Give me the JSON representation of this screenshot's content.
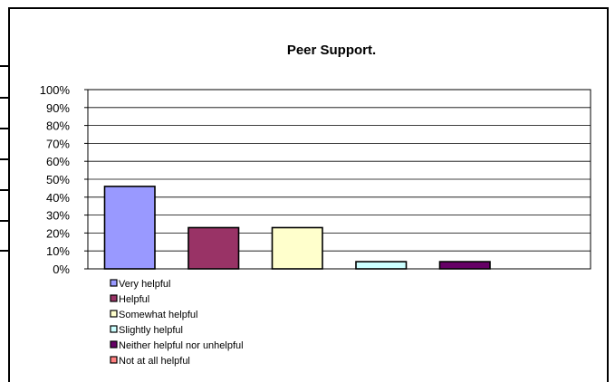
{
  "chart_data": {
    "type": "bar",
    "title": "Peer Support.",
    "categories": [
      "Very helpful",
      "Helpful",
      "Somewhat helpful",
      "Slightly helpful",
      "Neither helpful nor unhelpful",
      "Not at all helpful"
    ],
    "values": [
      46,
      23,
      23,
      4,
      4,
      0
    ],
    "colors": [
      "#9999FF",
      "#993366",
      "#FFFFCC",
      "#CCFFFF",
      "#660066",
      "#FF8080"
    ],
    "ylim": [
      0,
      100
    ],
    "yticks": [
      "0%",
      "10%",
      "20%",
      "30%",
      "40%",
      "50%",
      "60%",
      "70%",
      "80%",
      "90%",
      "100%"
    ],
    "grid": true,
    "legend": "bottom-left"
  }
}
